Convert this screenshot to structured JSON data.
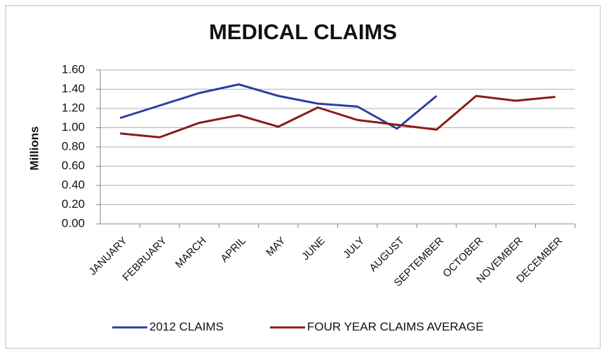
{
  "chart_data": {
    "type": "line",
    "title": "MEDICAL CLAIMS",
    "y_label": "Millions",
    "categories": [
      "JANUARY",
      "FEBRUARY",
      "MARCH",
      "APRIL",
      "MAY",
      "JUNE",
      "JULY",
      "AUGUST",
      "SEPTEMBER",
      "OCTOBER",
      "NOVEMBER",
      "DECEMBER"
    ],
    "series": [
      {
        "name": "2012 CLAIMS",
        "color": "#2b3f9e",
        "values": [
          1.1,
          1.23,
          1.36,
          1.45,
          1.33,
          1.25,
          1.22,
          0.99,
          1.33,
          null,
          null,
          null
        ]
      },
      {
        "name": "FOUR YEAR CLAIMS AVERAGE",
        "color": "#8b1a1a",
        "values": [
          0.94,
          0.9,
          1.05,
          1.13,
          1.01,
          1.21,
          1.08,
          1.03,
          0.98,
          1.33,
          1.28,
          1.32
        ]
      }
    ],
    "ylim": [
      0,
      1.6
    ],
    "yticks": [
      {
        "value": 0,
        "label": "0.00"
      },
      {
        "value": 0.2,
        "label": "0.20"
      },
      {
        "value": 0.4,
        "label": "0.40"
      },
      {
        "value": 0.6,
        "label": "0.60"
      },
      {
        "value": 0.8,
        "label": "0.80"
      },
      {
        "value": 1.0,
        "label": "1.00"
      },
      {
        "value": 1.2,
        "label": "1.20"
      },
      {
        "value": 1.4,
        "label": "1.40"
      },
      {
        "value": 1.6,
        "label": "1.60"
      }
    ],
    "grid": true,
    "legend": "bottom"
  }
}
